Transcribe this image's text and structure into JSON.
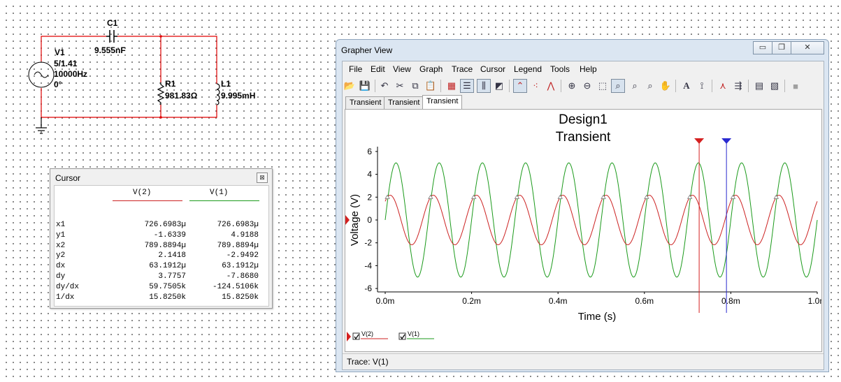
{
  "schematic": {
    "source": {
      "name": "V1",
      "amplitude": "5/1.41",
      "frequency": "10000Hz",
      "phase": "0°"
    },
    "capacitor": {
      "name": "C1",
      "value": "9.555nF"
    },
    "resistor": {
      "name": "R1",
      "value": "981.83Ω"
    },
    "inductor": {
      "name": "L1",
      "value": "9.995mH"
    }
  },
  "cursor_window": {
    "title": "Cursor",
    "columns": [
      "V(2)",
      "V(1)"
    ],
    "column_colors": [
      "#cc2222",
      "#1b9a1b"
    ],
    "rows": [
      {
        "label": "x1",
        "v2": "726.6983µ",
        "v1": "726.6983µ"
      },
      {
        "label": "y1",
        "v2": "-1.6339",
        "v1": "4.9188"
      },
      {
        "label": "x2",
        "v2": "789.8894µ",
        "v1": "789.8894µ"
      },
      {
        "label": "y2",
        "v2": "2.1418",
        "v1": "-2.9492"
      },
      {
        "label": "dx",
        "v2": "63.1912µ",
        "v1": "63.1912µ"
      },
      {
        "label": "dy",
        "v2": "3.7757",
        "v1": "-7.8680"
      },
      {
        "label": "dy/dx",
        "v2": "59.7505k",
        "v1": "-124.5106k"
      },
      {
        "label": "1/dx",
        "v2": "15.8250k",
        "v1": "15.8250k"
      }
    ]
  },
  "grapher": {
    "title": "Grapher View",
    "menu": [
      "File",
      "Edit",
      "View",
      "Graph",
      "Trace",
      "Cursor",
      "Legend",
      "Tools",
      "Help"
    ],
    "tabs": [
      "Transient",
      "Transient",
      "Transient"
    ],
    "active_tab": 2,
    "status": "Trace: V(1)"
  },
  "chart_data": {
    "type": "line",
    "title": "Design1",
    "subtitle": "Transient",
    "xlabel": "Time (s)",
    "ylabel": "Voltage (V)",
    "xlim": [
      0,
      0.001
    ],
    "ylim": [
      -6.3,
      6.3
    ],
    "x_ticks": [
      {
        "value": 0.0,
        "label": "0.0m"
      },
      {
        "value": 0.0002,
        "label": "0.2m"
      },
      {
        "value": 0.0004,
        "label": "0.4m"
      },
      {
        "value": 0.0006,
        "label": "0.6m"
      },
      {
        "value": 0.0008,
        "label": "0.8m"
      },
      {
        "value": 0.001,
        "label": "1.0m"
      }
    ],
    "y_ticks": [
      {
        "value": 6,
        "label": "6"
      },
      {
        "value": 4,
        "label": "4"
      },
      {
        "value": 2,
        "label": "2"
      },
      {
        "value": 0,
        "label": "0"
      },
      {
        "value": -2,
        "label": "-2"
      },
      {
        "value": -4,
        "label": "-4"
      },
      {
        "value": -6,
        "label": "-6"
      }
    ],
    "series": [
      {
        "name": "V(2)",
        "color": "#cc2222",
        "amplitude": 2.17,
        "frequency_hz": 10000,
        "phase_deg": 48.8
      },
      {
        "name": "V(1)",
        "color": "#1b9a1b",
        "amplitude": 5.0,
        "frequency_hz": 10000,
        "phase_deg": 0
      }
    ],
    "cursors": [
      {
        "name": "1",
        "x": 0.0007266983,
        "color": "#d42020"
      },
      {
        "name": "2",
        "x": 0.0007898894,
        "color": "#2a2ad0"
      }
    ],
    "legend_position": "bottom-left"
  }
}
